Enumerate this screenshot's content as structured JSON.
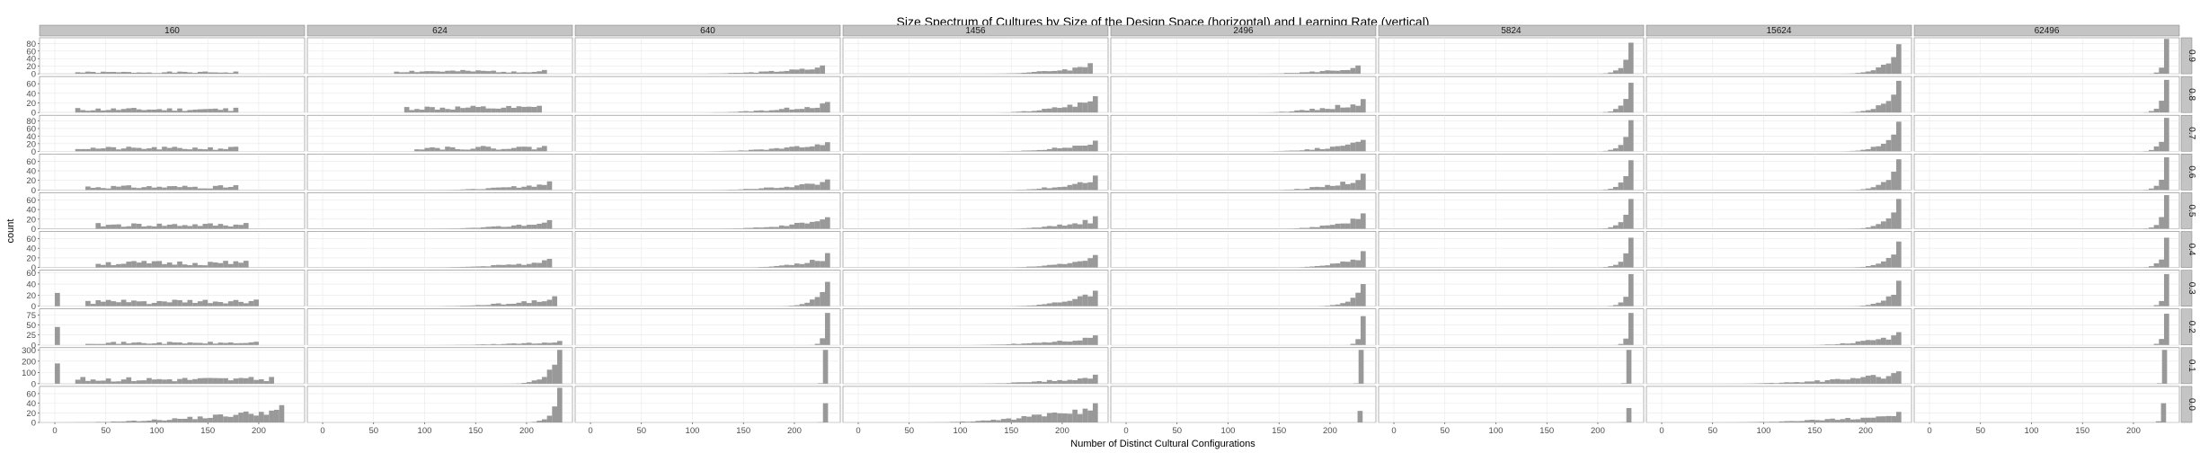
{
  "chart_data": {
    "type": "bar",
    "title": "Size Spectrum of Cultures by Size of the Design Space (horizontal) and Learning Rate (vertical)",
    "xlabel": "Number of Distinct Cultural Configurations",
    "ylabel": "count",
    "xlim": [
      -15,
      245
    ],
    "x_ticks": [
      0,
      50,
      100,
      150,
      200
    ],
    "grid": true,
    "legend": "none",
    "colors": {
      "bar": "#999999",
      "panel_bg": "#ffffff",
      "grid": "#e8e8e8",
      "strip_bg": "#c4c4c4"
    },
    "columns": [
      "160",
      "624",
      "640",
      "1456",
      "2496",
      "5824",
      "15624",
      "62496"
    ],
    "rows": [
      "0.9",
      "0.8",
      "0.7",
      "0.6",
      "0.5",
      "0.4",
      "0.3",
      "0.2",
      "0.1",
      "0.0"
    ],
    "row_axes": [
      {
        "ylim": [
          0,
          95
        ],
        "ticks": [
          0,
          20,
          40,
          60,
          80
        ]
      },
      {
        "ylim": [
          0,
          75
        ],
        "ticks": [
          0,
          20,
          40,
          60
        ]
      },
      {
        "ylim": [
          0,
          95
        ],
        "ticks": [
          0,
          20,
          40,
          60,
          80
        ]
      },
      {
        "ylim": [
          0,
          75
        ],
        "ticks": [
          0,
          20,
          40,
          60
        ]
      },
      {
        "ylim": [
          0,
          75
        ],
        "ticks": [
          0,
          20,
          40,
          60
        ]
      },
      {
        "ylim": [
          0,
          75
        ],
        "ticks": [
          0,
          20,
          40,
          60
        ]
      },
      {
        "ylim": [
          0,
          65
        ],
        "ticks": [
          0,
          20,
          40,
          60
        ]
      },
      {
        "ylim": [
          0,
          90
        ],
        "ticks": [
          0,
          25,
          50,
          75
        ]
      },
      {
        "ylim": [
          0,
          320
        ],
        "ticks": [
          0,
          100,
          200,
          300
        ]
      },
      {
        "ylim": [
          0,
          75
        ],
        "ticks": [
          0,
          20,
          40,
          60
        ]
      }
    ],
    "panels": [
      [
        {
          "range": [
            20,
            180
          ],
          "peak": 6,
          "shape": "flat",
          "seed": 1
        },
        {
          "range": [
            70,
            220
          ],
          "peak": 10,
          "shape": "flat",
          "seed": 2
        },
        {
          "range": [
            90,
            230
          ],
          "peak": 22,
          "shape": "rise",
          "seed": 3
        },
        {
          "range": [
            120,
            230
          ],
          "peak": 28,
          "shape": "rise",
          "seed": 4
        },
        {
          "range": [
            120,
            230
          ],
          "peak": 22,
          "shape": "rise",
          "seed": 5
        },
        {
          "range": [
            190,
            232
          ],
          "peak": 82,
          "shape": "spike",
          "seed": 6
        },
        {
          "range": [
            160,
            232
          ],
          "peak": 78,
          "shape": "spike",
          "seed": 7
        },
        {
          "range": [
            210,
            232
          ],
          "peak": 92,
          "shape": "spike",
          "seed": 8
        }
      ],
      [
        {
          "range": [
            20,
            180
          ],
          "peak": 10,
          "shape": "flat",
          "seed": 11
        },
        {
          "range": [
            80,
            215
          ],
          "peak": 14,
          "shape": "flat",
          "seed": 12
        },
        {
          "range": [
            100,
            232
          ],
          "peak": 22,
          "shape": "rise",
          "seed": 13
        },
        {
          "range": [
            130,
            232
          ],
          "peak": 34,
          "shape": "rise",
          "seed": 14
        },
        {
          "range": [
            120,
            232
          ],
          "peak": 28,
          "shape": "rise",
          "seed": 15
        },
        {
          "range": [
            190,
            232
          ],
          "peak": 62,
          "shape": "spike",
          "seed": 16
        },
        {
          "range": [
            160,
            232
          ],
          "peak": 66,
          "shape": "spike",
          "seed": 17
        },
        {
          "range": [
            200,
            232
          ],
          "peak": 68,
          "shape": "spike",
          "seed": 18
        }
      ],
      [
        {
          "range": [
            20,
            180
          ],
          "peak": 12,
          "shape": "flat",
          "seed": 21
        },
        {
          "range": [
            90,
            220
          ],
          "peak": 14,
          "shape": "flat",
          "seed": 22
        },
        {
          "range": [
            100,
            232
          ],
          "peak": 24,
          "shape": "rise",
          "seed": 23
        },
        {
          "range": [
            130,
            232
          ],
          "peak": 28,
          "shape": "rise",
          "seed": 24
        },
        {
          "range": [
            130,
            232
          ],
          "peak": 30,
          "shape": "rise",
          "seed": 25
        },
        {
          "range": [
            190,
            232
          ],
          "peak": 82,
          "shape": "spike",
          "seed": 26
        },
        {
          "range": [
            160,
            232
          ],
          "peak": 78,
          "shape": "spike",
          "seed": 27
        },
        {
          "range": [
            200,
            232
          ],
          "peak": 88,
          "shape": "spike",
          "seed": 28
        }
      ],
      [
        {
          "range": [
            30,
            180
          ],
          "peak": 10,
          "shape": "flat",
          "seed": 31
        },
        {
          "range": [
            100,
            225
          ],
          "peak": 18,
          "shape": "rise",
          "seed": 32
        },
        {
          "range": [
            110,
            232
          ],
          "peak": 22,
          "shape": "rise",
          "seed": 33
        },
        {
          "range": [
            140,
            232
          ],
          "peak": 30,
          "shape": "rise",
          "seed": 34
        },
        {
          "range": [
            140,
            232
          ],
          "peak": 34,
          "shape": "rise",
          "seed": 35
        },
        {
          "range": [
            190,
            232
          ],
          "peak": 62,
          "shape": "spike",
          "seed": 36
        },
        {
          "range": [
            170,
            232
          ],
          "peak": 64,
          "shape": "spike",
          "seed": 37
        },
        {
          "range": [
            200,
            232
          ],
          "peak": 68,
          "shape": "spike",
          "seed": 38
        }
      ],
      [
        {
          "range": [
            40,
            190
          ],
          "peak": 12,
          "shape": "flat",
          "seed": 41
        },
        {
          "range": [
            100,
            225
          ],
          "peak": 18,
          "shape": "rise",
          "seed": 42
        },
        {
          "range": [
            120,
            232
          ],
          "peak": 24,
          "shape": "rise",
          "seed": 43
        },
        {
          "range": [
            140,
            232
          ],
          "peak": 26,
          "shape": "rise",
          "seed": 44
        },
        {
          "range": [
            150,
            232
          ],
          "peak": 32,
          "shape": "rise",
          "seed": 45
        },
        {
          "range": [
            190,
            232
          ],
          "peak": 62,
          "shape": "spike",
          "seed": 46
        },
        {
          "range": [
            170,
            232
          ],
          "peak": 62,
          "shape": "spike",
          "seed": 47
        },
        {
          "range": [
            200,
            232
          ],
          "peak": 70,
          "shape": "spike",
          "seed": 48
        }
      ],
      [
        {
          "range": [
            40,
            190
          ],
          "peak": 14,
          "shape": "flat",
          "seed": 51
        },
        {
          "range": [
            100,
            225
          ],
          "peak": 18,
          "shape": "rise",
          "seed": 52
        },
        {
          "range": [
            150,
            232
          ],
          "peak": 30,
          "shape": "rise",
          "seed": 53
        },
        {
          "range": [
            140,
            232
          ],
          "peak": 26,
          "shape": "rise",
          "seed": 54
        },
        {
          "range": [
            160,
            232
          ],
          "peak": 34,
          "shape": "rise",
          "seed": 55
        },
        {
          "range": [
            190,
            232
          ],
          "peak": 62,
          "shape": "spike",
          "seed": 56
        },
        {
          "range": [
            170,
            232
          ],
          "peak": 54,
          "shape": "spike",
          "seed": 57
        },
        {
          "range": [
            200,
            232
          ],
          "peak": 62,
          "shape": "spike",
          "seed": 58
        }
      ],
      [
        {
          "range": [
            30,
            200
          ],
          "peak": 12,
          "shape": "flat",
          "first": 24,
          "seed": 61
        },
        {
          "range": [
            100,
            230
          ],
          "peak": 18,
          "shape": "rise",
          "seed": 62
        },
        {
          "range": [
            170,
            232
          ],
          "peak": 44,
          "shape": "spike",
          "seed": 63
        },
        {
          "range": [
            140,
            232
          ],
          "peak": 28,
          "shape": "rise",
          "seed": 64
        },
        {
          "range": [
            170,
            232
          ],
          "peak": 40,
          "shape": "spike",
          "seed": 65
        },
        {
          "range": [
            200,
            232
          ],
          "peak": 58,
          "shape": "spike",
          "seed": 66
        },
        {
          "range": [
            170,
            232
          ],
          "peak": 46,
          "shape": "spike",
          "seed": 67
        },
        {
          "range": [
            210,
            232
          ],
          "peak": 58,
          "shape": "spike",
          "seed": 68
        }
      ],
      [
        {
          "range": [
            30,
            200
          ],
          "peak": 8,
          "shape": "flat",
          "first": 45,
          "seed": 71
        },
        {
          "range": [
            100,
            232
          ],
          "peak": 10,
          "shape": "rise",
          "seed": 72
        },
        {
          "range": [
            210,
            232
          ],
          "peak": 80,
          "shape": "spike",
          "seed": 73
        },
        {
          "range": [
            100,
            232
          ],
          "peak": 24,
          "shape": "rise",
          "seed": 74
        },
        {
          "range": [
            210,
            232
          ],
          "peak": 72,
          "shape": "spike",
          "seed": 75
        },
        {
          "range": [
            210,
            232
          ],
          "peak": 80,
          "shape": "spike",
          "seed": 76
        },
        {
          "range": [
            140,
            232
          ],
          "peak": 32,
          "shape": "rise",
          "seed": 77
        },
        {
          "range": [
            210,
            232
          ],
          "peak": 78,
          "shape": "spike",
          "seed": 78
        }
      ],
      [
        {
          "range": [
            20,
            215
          ],
          "peak": 60,
          "shape": "flat",
          "first": 180,
          "seed": 81
        },
        {
          "range": [
            170,
            232
          ],
          "peak": 300,
          "shape": "spike",
          "seed": 82
        },
        {
          "range": [
            218,
            232
          ],
          "peak": 300,
          "shape": "spike",
          "seed": 83
        },
        {
          "range": [
            100,
            232
          ],
          "peak": 80,
          "shape": "rise",
          "seed": 84
        },
        {
          "range": [
            218,
            232
          ],
          "peak": 300,
          "shape": "spike",
          "seed": 85
        },
        {
          "range": [
            218,
            232
          ],
          "peak": 300,
          "shape": "spike",
          "seed": 86
        },
        {
          "range": [
            60,
            232
          ],
          "peak": 110,
          "shape": "rise",
          "seed": 87
        },
        {
          "range": [
            218,
            232
          ],
          "peak": 300,
          "shape": "spike",
          "seed": 88
        }
      ],
      [
        {
          "range": [
            0,
            225
          ],
          "peak": 36,
          "shape": "rise",
          "seed": 91
        },
        {
          "range": [
            190,
            232
          ],
          "peak": 72,
          "shape": "spike",
          "seed": 92
        },
        {
          "range": [
            218,
            232
          ],
          "peak": 40,
          "shape": "spike",
          "seed": 93
        },
        {
          "range": [
            60,
            232
          ],
          "peak": 40,
          "shape": "rise",
          "seed": 94
        },
        {
          "range": [
            222,
            232
          ],
          "peak": 24,
          "shape": "spike",
          "seed": 95
        },
        {
          "range": [
            218,
            232
          ],
          "peak": 30,
          "shape": "spike",
          "seed": 96
        },
        {
          "range": [
            50,
            232
          ],
          "peak": 22,
          "shape": "rise",
          "seed": 97
        },
        {
          "range": [
            212,
            232
          ],
          "peak": 40,
          "shape": "spike",
          "seed": 98
        }
      ]
    ]
  }
}
